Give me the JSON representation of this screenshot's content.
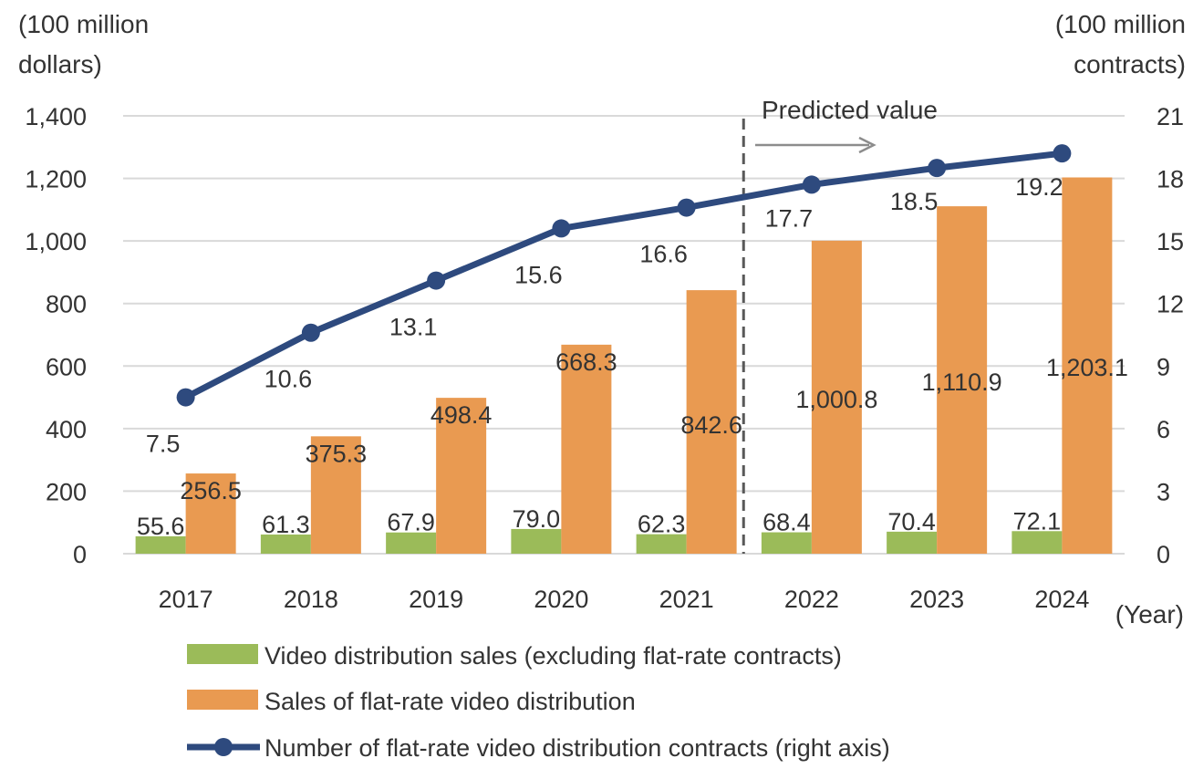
{
  "colors": {
    "green": "#9bbb59",
    "orange": "#e99a51",
    "navy": "#2e4a7e",
    "grid": "#d9d9d9",
    "divider": "#595959",
    "arrow": "#8c8c8c"
  },
  "chart_data": {
    "type": "bar",
    "categories": [
      "2017",
      "2018",
      "2019",
      "2020",
      "2021",
      "2022",
      "2023",
      "2024"
    ],
    "x_unit": "(Year)",
    "left_axis": {
      "unit_line1": "(100 million",
      "unit_line2": "dollars)",
      "ticks": [
        "0",
        "200",
        "400",
        "600",
        "800",
        "1,000",
        "1,200",
        "1,400"
      ],
      "range": [
        0,
        1400
      ]
    },
    "right_axis": {
      "unit_line1": "(100 million",
      "unit_line2": "contracts)",
      "ticks": [
        "0",
        "3",
        "6",
        "9",
        "12",
        "15",
        "18",
        "21"
      ],
      "range": [
        0,
        21
      ]
    },
    "series": [
      {
        "name": "Video distribution sales (excluding flat-rate contracts)",
        "type": "bar",
        "axis": "left",
        "color": "green",
        "values": [
          55.6,
          61.3,
          67.9,
          79.0,
          62.3,
          68.4,
          70.4,
          72.1
        ],
        "labels": [
          "55.6",
          "61.3",
          "67.9",
          "79.0",
          "62.3",
          "68.4",
          "70.4",
          "72.1"
        ]
      },
      {
        "name": "Sales of flat-rate video distribution",
        "type": "bar",
        "axis": "left",
        "color": "orange",
        "values": [
          256.5,
          375.3,
          498.4,
          668.3,
          842.6,
          1000.8,
          1110.9,
          1203.1
        ],
        "labels": [
          "256.5",
          "375.3",
          "498.4",
          "668.3",
          "842.6",
          "1,000.8",
          "1,110.9",
          "1,203.1"
        ]
      },
      {
        "name": "Number of flat-rate video distribution contracts (right axis)",
        "type": "line",
        "axis": "right",
        "color": "navy",
        "values": [
          7.5,
          10.6,
          13.1,
          15.6,
          16.6,
          17.7,
          18.5,
          19.2
        ],
        "labels": [
          "7.5",
          "10.6",
          "13.1",
          "15.6",
          "16.6",
          "17.7",
          "18.5",
          "19.2"
        ]
      }
    ],
    "annotation": {
      "text": "Predicted value",
      "starts_after_category": "2021"
    },
    "grid": true,
    "legend_position": "bottom"
  }
}
